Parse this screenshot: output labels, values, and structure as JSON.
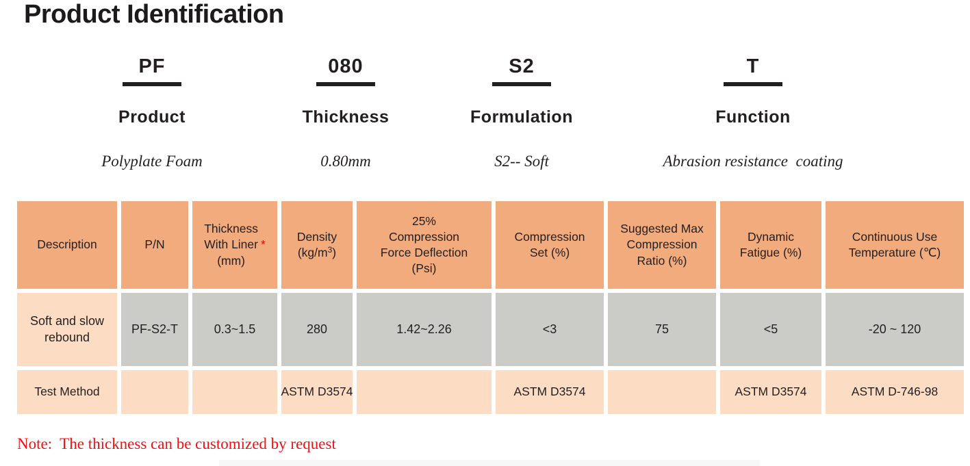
{
  "title": "Product Identification",
  "code_breakdown": {
    "columns": [
      {
        "code": "PF",
        "category": "Product",
        "meaning": "Polyplate Foam"
      },
      {
        "code": "080",
        "category": "Thickness",
        "meaning": "0.80mm"
      },
      {
        "code": "S2",
        "category": "Formulation",
        "meaning": "S2-- Soft"
      },
      {
        "code": "T",
        "category": "Function",
        "meaning": "Abrasion resistance  coating"
      }
    ]
  },
  "table": {
    "header_cells": [
      {
        "text": "Description"
      },
      {
        "text": "P/N"
      },
      {
        "text": "Thickness\nWith Liner\n(mm)",
        "asterisk": "*"
      },
      {
        "pre": "Density\n(kg/m",
        "sup": "3",
        "post": ")"
      },
      {
        "text": "25%\nCompression\nForce Deflection\n(Psi)"
      },
      {
        "text": "Compression\nSet (%)"
      },
      {
        "text": "Suggested Max\nCompression\nRatio (%)"
      },
      {
        "text": "Dynamic\nFatigue (%)"
      },
      {
        "text": "Continuous Use\nTemperature (℃)"
      }
    ],
    "data_row": {
      "cells": [
        "Soft and slow\nrebound",
        "PF-S2-T",
        "0.3~1.5",
        "280",
        "1.42~2.26",
        "<3",
        "75",
        "<5",
        "-20 ~ 120"
      ]
    },
    "test_method_row": {
      "cells": [
        "Test Method",
        "",
        "",
        "ASTM D3574",
        "",
        "ASTM D3574",
        "",
        "ASTM D3574",
        "ASTM D-746-98"
      ]
    }
  },
  "note": "Note:  The thickness can be customized by request",
  "colors": {
    "header_bg": "#f2ab7c",
    "row_label_bg": "#fcddc3",
    "data_bg": "#cbccc7",
    "underline": "#231f20",
    "note_red": "#ee1111",
    "asterisk_red": "#ff0000"
  }
}
